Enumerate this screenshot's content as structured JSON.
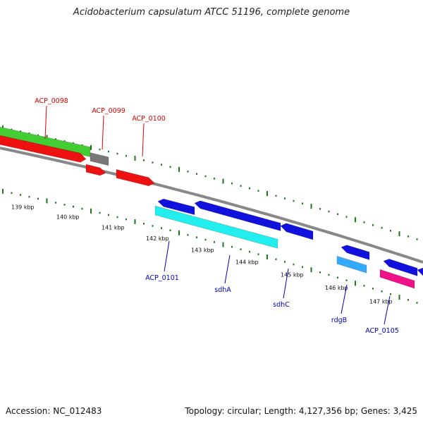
{
  "title": "Acidobacterium capsulatum ATCC 51196, complete genome",
  "footer": {
    "accession": "Accession: NC_012483",
    "summary": "Topology: circular; Length: 4,127,356 bp; Genes: 3,425"
  },
  "colors": {
    "backbone": "#888888",
    "tick": "#1a7a1a",
    "upper_label": "#dd0000",
    "lower_label": "#0000bb",
    "gene_red": "#ee1111",
    "gene_green": "#44cc33",
    "gene_gray": "#777777",
    "gene_blue": "#1111dd",
    "gene_cyan": "#22eeee",
    "gene_lightblue": "#33aaff",
    "gene_magenta": "#ee1188"
  },
  "kbp_labels": [
    "139 kbp",
    "140 kbp",
    "141 kbp",
    "142 kbp",
    "143 kbp",
    "144 kbp",
    "145 kbp",
    "146 kbp",
    "147 kbp"
  ],
  "gene_labels_upper": [
    "ACP_0098",
    "ACP_0099",
    "ACP_0100"
  ],
  "gene_labels_lower": [
    "ACP_0101",
    "sdhA",
    "sdhC",
    "rdgB",
    "ACP_0105"
  ]
}
